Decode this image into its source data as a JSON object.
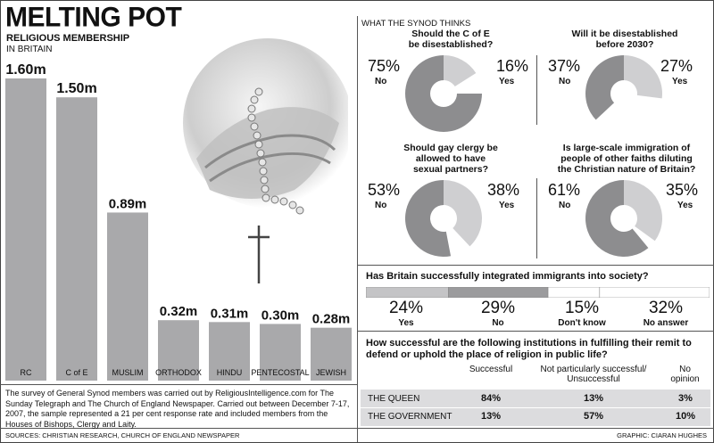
{
  "header": {
    "title": "MELTING POT",
    "subtitle": "RELIGIOUS MEMBERSHIP",
    "subtitle2": "IN BRITAIN"
  },
  "chart_data": [
    {
      "type": "bar",
      "categories": [
        "RC",
        "C of E",
        "MUSLIM",
        "ORTHODOX",
        "HINDU",
        "PENTECOSTAL",
        "JEWISH"
      ],
      "values": [
        1.6,
        1.5,
        0.89,
        0.32,
        0.31,
        0.3,
        0.28
      ],
      "value_labels": [
        "1.60m",
        "1.50m",
        "0.89m",
        "0.32m",
        "0.31m",
        "0.30m",
        "0.28m"
      ],
      "ylim": [
        0,
        1.6
      ],
      "bar_color": "#a9a9ab"
    },
    {
      "type": "pie",
      "title": "Should the C of E be disestablished?",
      "slices": [
        {
          "label": "No",
          "value": 75,
          "text": "75%"
        },
        {
          "label": "Yes",
          "value": 16,
          "text": "16%"
        }
      ]
    },
    {
      "type": "pie",
      "title": "Will it be disestablished before 2030?",
      "slices": [
        {
          "label": "No",
          "value": 37,
          "text": "37%"
        },
        {
          "label": "Yes",
          "value": 27,
          "text": "27%"
        }
      ]
    },
    {
      "type": "pie",
      "title": "Should gay clergy be allowed to have sexual partners?",
      "slices": [
        {
          "label": "No",
          "value": 53,
          "text": "53%"
        },
        {
          "label": "Yes",
          "value": 38,
          "text": "38%"
        }
      ]
    },
    {
      "type": "pie",
      "title": "Is large-scale immigration of people of other faiths diluting the Christian nature of Britain?",
      "slices": [
        {
          "label": "No",
          "value": 61,
          "text": "61%"
        },
        {
          "label": "Yes",
          "value": 35,
          "text": "35%"
        }
      ]
    },
    {
      "type": "bar",
      "title": "Has Britain successfully integrated immigrants into society?",
      "categories": [
        "Yes",
        "No",
        "Don't know",
        "No answer"
      ],
      "values": [
        24,
        29,
        15,
        32
      ],
      "value_labels": [
        "24%",
        "29%",
        "15%",
        "32%"
      ]
    },
    {
      "type": "table",
      "title": "How successful are the following institutions in fulfilling their remit to defend or uphold the place  of religion in public life?",
      "columns": [
        "Successful",
        "Not particularly successful/ Unsuccessful",
        "No opinion"
      ],
      "rows": [
        {
          "label": "THE QUEEN",
          "values": [
            "84%",
            "13%",
            "3%"
          ]
        },
        {
          "label": "THE GOVERNMENT",
          "values": [
            "13%",
            "57%",
            "10%"
          ]
        }
      ]
    }
  ],
  "synod": {
    "heading": "WHAT THE SYNOD THINKS",
    "q1": {
      "line1": "Should the C of E",
      "line2": "be disestablished?",
      "no_pct": "75%",
      "no": "No",
      "yes_pct": "16%",
      "yes": "Yes"
    },
    "q2": {
      "line1": "Will it be disestablished",
      "line2": "before 2030?",
      "no_pct": "37%",
      "no": "No",
      "yes_pct": "27%",
      "yes": "Yes"
    },
    "q3": {
      "line1": "Should gay clergy be",
      "line2": "allowed to have",
      "line3": "sexual partners?",
      "no_pct": "53%",
      "no": "No",
      "yes_pct": "38%",
      "yes": "Yes"
    },
    "q4": {
      "line1": "Is large-scale immigration of",
      "line2": "people of other faiths diluting",
      "line3": "the Christian nature of Britain?",
      "no_pct": "61%",
      "no": "No",
      "yes_pct": "35%",
      "yes": "Yes"
    }
  },
  "integration": {
    "question": "Has Britain successfully integrated immigrants into society?",
    "items": [
      {
        "pct": "24%",
        "label": "Yes"
      },
      {
        "pct": "29%",
        "label": "No"
      },
      {
        "pct": "15%",
        "label": "Don't know"
      },
      {
        "pct": "32%",
        "label": "No answer"
      }
    ]
  },
  "institutions": {
    "question": "How successful are the following institutions in fulfilling their remit to defend or uphold the place  of religion in public life?",
    "col1": "Successful",
    "col2a": "Not particularly successful/",
    "col2b": "Unsuccessful",
    "col3a": "No",
    "col3b": "opinion",
    "row1": {
      "label": "THE QUEEN",
      "v1": "84%",
      "v2": "13%",
      "v3": "3%"
    },
    "row2": {
      "label": "THE GOVERNMENT",
      "v1": "13%",
      "v2": "57%",
      "v3": "10%"
    }
  },
  "footer": {
    "note": "The survey of General Synod members was carried out by ReligiousIntelligence.com for The Sunday Telegraph and The Church of England Newspaper. Carried out between December 7-17, 2007, the sample represented a 21 per cent response rate and included members from the Houses of Bishops, Clergy and Laity.",
    "sources": "SOURCES: CHRISTIAN RESEARCH, CHURCH OF ENGLAND NEWSPAPER",
    "graphic": "GRAPHIC: CIARAN HUGHES"
  },
  "colors": {
    "bar": "#a9a9ab",
    "pie_dark": "#8d8d8f",
    "pie_light": "#cfcfd1",
    "row_shade": "#dcdcde"
  }
}
